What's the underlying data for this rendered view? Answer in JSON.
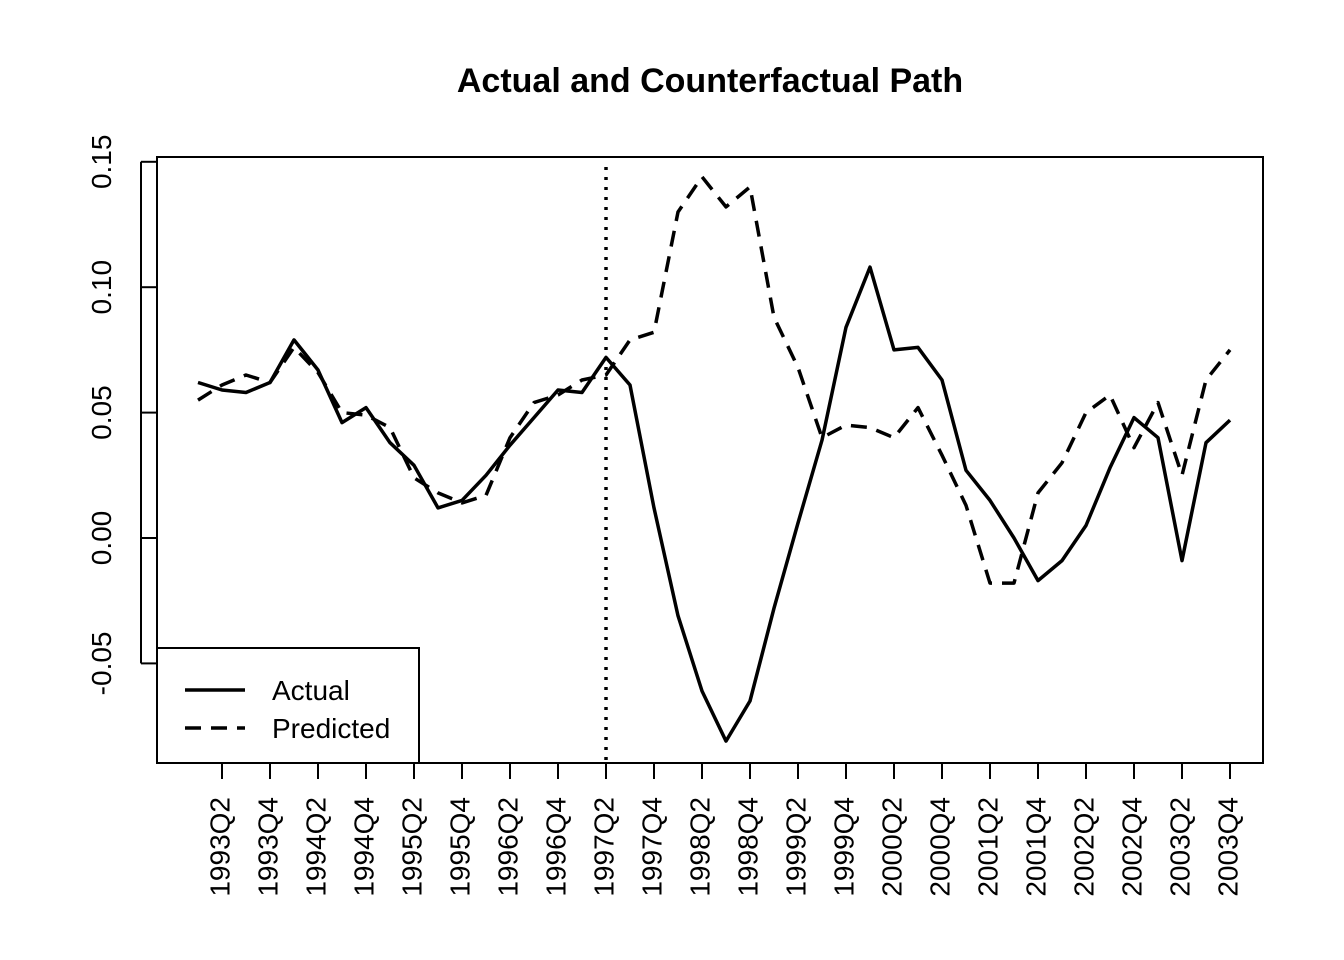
{
  "chart_data": {
    "type": "line",
    "title": "Actual and Counterfactual Path",
    "xlabel": "",
    "ylabel": "",
    "ylim": [
      -0.09,
      0.152
    ],
    "y_ticks": [
      "-0.05",
      "0.00",
      "0.05",
      "0.10",
      "0.15"
    ],
    "y_tick_values": [
      -0.05,
      0.0,
      0.05,
      0.1,
      0.15
    ],
    "x_tick_labels": [
      "1993Q2",
      "1993Q4",
      "1994Q2",
      "1994Q4",
      "1995Q2",
      "1995Q4",
      "1996Q2",
      "1996Q4",
      "1997Q2",
      "1997Q4",
      "1998Q2",
      "1998Q4",
      "1999Q2",
      "1999Q4",
      "2000Q2",
      "2000Q4",
      "2001Q2",
      "2001Q4",
      "2002Q2",
      "2002Q4",
      "2003Q2",
      "2003Q4"
    ],
    "x": [
      "1993Q1",
      "1993Q2",
      "1993Q3",
      "1993Q4",
      "1994Q1",
      "1994Q2",
      "1994Q3",
      "1994Q4",
      "1995Q1",
      "1995Q2",
      "1995Q3",
      "1995Q4",
      "1996Q1",
      "1996Q2",
      "1996Q3",
      "1996Q4",
      "1997Q1",
      "1997Q2",
      "1997Q3",
      "1997Q4",
      "1998Q1",
      "1998Q2",
      "1998Q3",
      "1998Q4",
      "1999Q1",
      "1999Q2",
      "1999Q3",
      "1999Q4",
      "2000Q1",
      "2000Q2",
      "2000Q3",
      "2000Q4",
      "2001Q1",
      "2001Q2",
      "2001Q3",
      "2001Q4",
      "2002Q1",
      "2002Q2",
      "2002Q3",
      "2002Q4",
      "2003Q1",
      "2003Q2",
      "2003Q3",
      "2003Q4"
    ],
    "intervention": "1997Q2",
    "legend_position": "bottom-left",
    "series": [
      {
        "name": "Actual",
        "style": "solid",
        "values": [
          0.062,
          0.059,
          0.058,
          0.062,
          0.079,
          0.067,
          0.046,
          0.052,
          0.038,
          0.029,
          0.012,
          0.015,
          0.025,
          0.037,
          0.048,
          0.059,
          0.058,
          0.072,
          0.061,
          0.012,
          -0.031,
          -0.061,
          -0.081,
          -0.065,
          -0.028,
          0.006,
          0.039,
          0.084,
          0.108,
          0.075,
          0.076,
          0.063,
          0.027,
          0.015,
          0.0,
          -0.017,
          -0.009,
          0.005,
          0.028,
          0.048,
          0.04,
          -0.009,
          0.038,
          0.047
        ]
      },
      {
        "name": "Predicted",
        "style": "dashed",
        "values": [
          0.055,
          0.061,
          0.065,
          0.062,
          0.076,
          0.066,
          0.05,
          0.049,
          0.044,
          0.024,
          0.018,
          0.014,
          0.017,
          0.04,
          0.054,
          0.057,
          0.063,
          0.065,
          0.079,
          0.082,
          0.13,
          0.144,
          0.132,
          0.14,
          0.088,
          0.068,
          0.04,
          0.045,
          0.044,
          0.04,
          0.052,
          0.033,
          0.013,
          -0.018,
          -0.018,
          0.018,
          0.03,
          0.05,
          0.057,
          0.036,
          0.054,
          0.025,
          0.063,
          0.075
        ]
      }
    ]
  }
}
